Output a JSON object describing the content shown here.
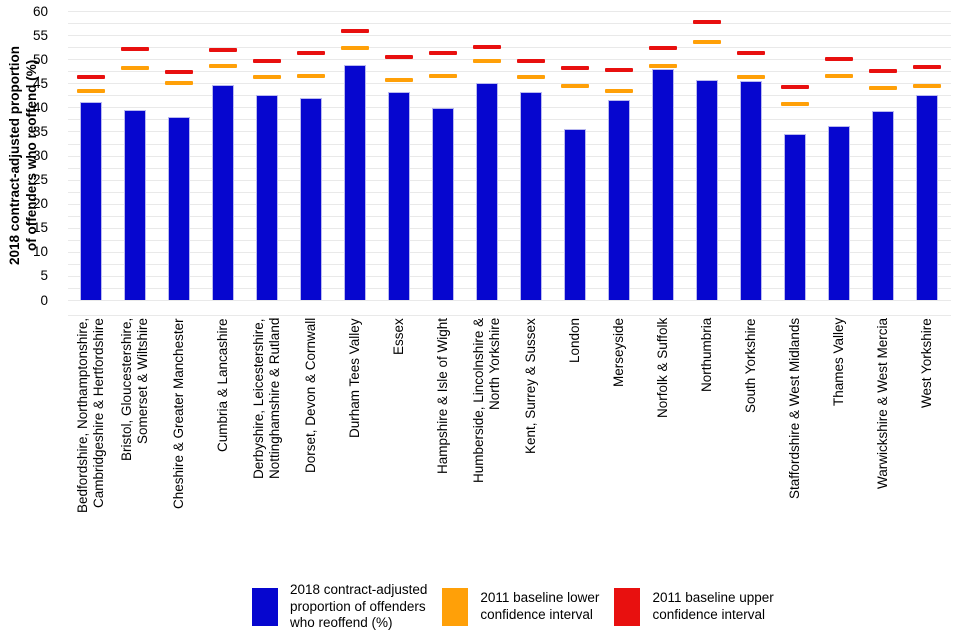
{
  "y_axis": {
    "title": "2018 contract-adjusted proportion\nof offenders who reoffend (%)",
    "min": 0,
    "max": 60,
    "tick_step": 5,
    "minor_grid_step": 2.5
  },
  "legend": {
    "items": [
      {
        "label": "2018 contract-adjusted\nproportion of offenders\nwho reoffend (%)",
        "color": "#0606cf"
      },
      {
        "label": "2011 baseline lower\nconfidence interval",
        "color": "#ffa008"
      },
      {
        "label": "2011 baseline upper\nconfidence interval",
        "color": "#e8100f"
      }
    ]
  },
  "colors": {
    "bar_fill": "#0606cf",
    "bar_border": "#b9b9ef",
    "lower_ci": "#ffa008",
    "upper_ci": "#e8100f",
    "gridline": "#e9e9e9"
  },
  "chart_data": {
    "type": "bar",
    "title": "",
    "xlabel": "",
    "ylabel": "2018 contract-adjusted proportion of offenders who reoffend (%)",
    "ylim": [
      0,
      60
    ],
    "ytick_step": 5,
    "grid": true,
    "legend_position": "bottom",
    "categories": [
      "Bedfordshire, Northamptonshire,\nCambridgeshire & Hertfordshire",
      "Bristol, Gloucestershire,\nSomerset & Wiltshire",
      "Cheshire & Greater Manchester",
      "Cumbria & Lancashire",
      "Derbyshire, Leicestershire,\nNottinghamshire & Rutland",
      "Dorset, Devon & Cornwall",
      "Durham Tees Valley",
      "Essex",
      "Hampshire & Isle of Wight",
      "Humberside, Lincolnshire &\nNorth Yorkshire",
      "Kent, Surrey & Sussex",
      "London",
      "Merseyside",
      "Norfolk & Suffolk",
      "Northumbria",
      "South Yorkshire",
      "Staffordshire & West Midlands",
      "Thames Valley",
      "Warwickshire & West Mercia",
      "West Yorkshire"
    ],
    "series": [
      {
        "name": "2018 contract-adjusted proportion of offenders who reoffend (%)",
        "render": "bar",
        "color": "#0606cf",
        "values": [
          41.1,
          39.4,
          37.9,
          44.6,
          42.5,
          41.9,
          48.7,
          43.2,
          39.9,
          45.1,
          43.2,
          35.5,
          41.6,
          47.9,
          45.6,
          45.5,
          34.5,
          36.2,
          39.2,
          42.5
        ]
      },
      {
        "name": "2011 baseline lower confidence interval",
        "render": "dash",
        "color": "#ffa008",
        "values": [
          43.5,
          48.1,
          45.1,
          48.5,
          46.4,
          46.5,
          52.4,
          45.7,
          46.6,
          49.7,
          46.4,
          44.5,
          43.3,
          48.6,
          53.5,
          46.4,
          40.8,
          46.6,
          44.0,
          44.4
        ]
      },
      {
        "name": "2011 baseline upper confidence interval",
        "render": "dash",
        "color": "#e8100f",
        "values": [
          46.3,
          52.1,
          47.3,
          52.0,
          49.6,
          51.3,
          55.9,
          50.5,
          51.2,
          52.6,
          49.6,
          48.1,
          47.8,
          52.4,
          57.7,
          51.2,
          44.2,
          50.0,
          47.6,
          48.3
        ]
      }
    ]
  }
}
